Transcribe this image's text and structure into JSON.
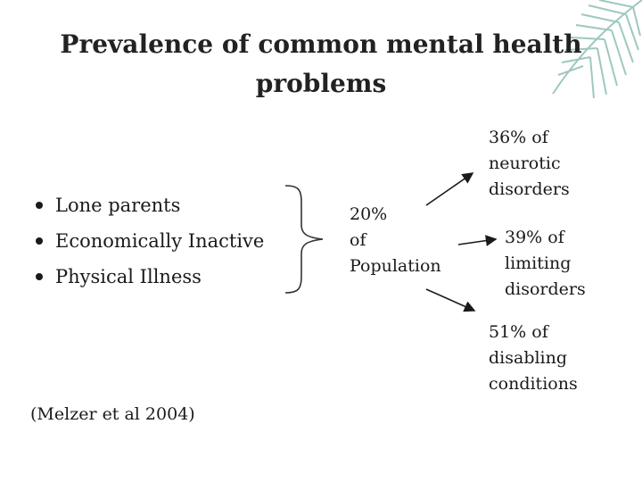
{
  "title": {
    "line1": "Prevalence of common mental health",
    "line2": "problems"
  },
  "bullets": [
    "Lone parents",
    "Economically Inactive",
    "Physical Illness"
  ],
  "population": {
    "line1": "20%",
    "line2": "of",
    "line3": "Population"
  },
  "outcomes": [
    {
      "line1": "36% of",
      "line2": "neurotic",
      "line3": "disorders"
    },
    {
      "line1": "39% of",
      "line2": "limiting",
      "line3": "disorders"
    },
    {
      "line1": "51% of",
      "line2": "disabling",
      "line3": "conditions"
    }
  ],
  "citation": "(Melzer et al 2004)",
  "colors": {
    "palm": "#7fb3a8",
    "text": "#1a1a1a"
  },
  "icons": {
    "decoration": "palm-leaf-icon",
    "bullet": "bullet-dot-icon",
    "arrow": "arrow-icon"
  }
}
